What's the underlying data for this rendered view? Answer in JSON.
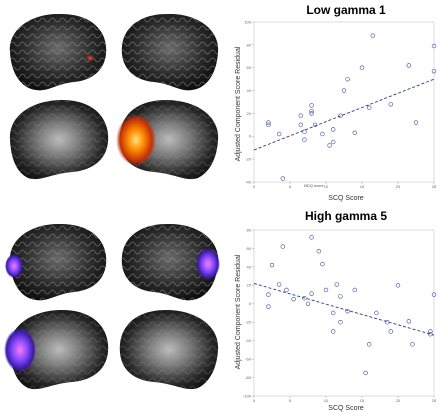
{
  "chart_data": [
    {
      "type": "scatter",
      "title": "Low gamma 1",
      "xlabel": "SCQ Score",
      "ylabel": "Adjusted Component Score Residual",
      "annotation": "BDQ score",
      "xlim": [
        0,
        25
      ],
      "ylim": [
        -40,
        100
      ],
      "xticks": [
        0,
        5,
        10,
        15,
        20,
        25
      ],
      "yticks": [
        -40,
        -20,
        0,
        20,
        40,
        60,
        80,
        100
      ],
      "xtick_labels": [
        "0",
        "5",
        "10",
        "15",
        "20",
        "25"
      ],
      "ytick_labels": [
        "-40",
        "-20",
        "0",
        "20",
        "40",
        "60",
        "80",
        "100"
      ],
      "grid": false,
      "series": [
        {
          "points": [
            [
              2,
              10
            ],
            [
              2,
              12
            ],
            [
              3.5,
              2
            ],
            [
              4,
              -37
            ],
            [
              6.5,
              18
            ],
            [
              6.5,
              10
            ],
            [
              7,
              -3
            ],
            [
              7,
              4
            ],
            [
              8,
              20
            ],
            [
              8,
              22
            ],
            [
              8,
              27
            ],
            [
              8.5,
              10
            ],
            [
              9.5,
              2
            ],
            [
              10.5,
              -8
            ],
            [
              11,
              6
            ],
            [
              11,
              -5
            ],
            [
              12,
              18
            ],
            [
              12.5,
              40
            ],
            [
              14,
              3
            ],
            [
              15,
              60
            ],
            [
              16,
              25
            ],
            [
              16.5,
              88
            ],
            [
              19,
              28
            ],
            [
              21.5,
              62
            ],
            [
              22.5,
              12
            ],
            [
              25,
              57
            ],
            [
              25,
              79
            ],
            [
              13,
              50
            ]
          ]
        }
      ],
      "trendline": {
        "x": [
          0,
          25
        ],
        "y": [
          -12,
          50
        ]
      }
    },
    {
      "type": "scatter",
      "title": "High gamma 5",
      "xlabel": "SCQ Score",
      "ylabel": "Adjusted Component Score Residual",
      "xlim": [
        0,
        25
      ],
      "ylim": [
        -100,
        80
      ],
      "xticks": [
        0,
        5,
        10,
        15,
        20,
        25
      ],
      "yticks": [
        -100,
        -80,
        -60,
        -40,
        -20,
        0,
        20,
        40,
        60,
        80
      ],
      "xtick_labels": [
        "0",
        "5",
        "10",
        "15",
        "20",
        "25"
      ],
      "ytick_labels": [
        "-100",
        "-80",
        "-60",
        "-40",
        "-20",
        "0",
        "20",
        "40",
        "60",
        "80"
      ],
      "grid": false,
      "series": [
        {
          "points": [
            [
              2,
              10
            ],
            [
              2,
              -3
            ],
            [
              2.5,
              42
            ],
            [
              3.5,
              21
            ],
            [
              4,
              62
            ],
            [
              4.5,
              15
            ],
            [
              5.5,
              5
            ],
            [
              7,
              6
            ],
            [
              7.5,
              0
            ],
            [
              8,
              72
            ],
            [
              8,
              11
            ],
            [
              9,
              57
            ],
            [
              9.5,
              43
            ],
            [
              10,
              15
            ],
            [
              11,
              -10
            ],
            [
              11,
              -30
            ],
            [
              11.5,
              21
            ],
            [
              12,
              8
            ],
            [
              12,
              -20
            ],
            [
              13,
              -8
            ],
            [
              14,
              15
            ],
            [
              15.5,
              -75
            ],
            [
              16,
              -44
            ],
            [
              17,
              -10
            ],
            [
              18.5,
              -20
            ],
            [
              19,
              -30
            ],
            [
              20,
              20
            ],
            [
              21.5,
              -19
            ],
            [
              22,
              -44
            ],
            [
              24.5,
              -30
            ],
            [
              24.5,
              -33
            ],
            [
              25,
              10
            ]
          ]
        }
      ],
      "trendline": {
        "x": [
          0,
          25
        ],
        "y": [
          22,
          -34
        ]
      }
    }
  ],
  "brain_panels": [
    {
      "label": "low-gamma-1-brain-maps",
      "activation_color": "#ff6a00"
    },
    {
      "label": "high-gamma-5-brain-maps",
      "activation_color": "#6a3cff"
    }
  ]
}
